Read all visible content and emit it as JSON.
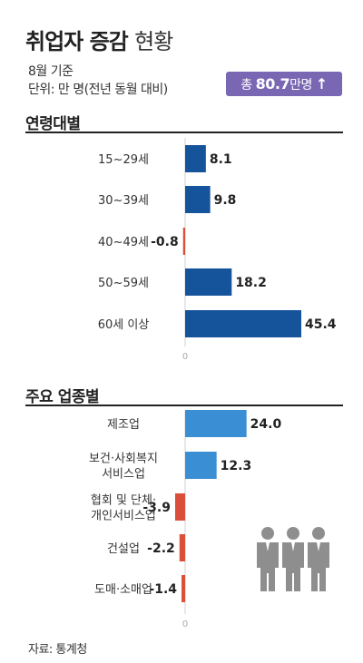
{
  "title": {
    "bold": "취업자 증감",
    "light": "현황"
  },
  "subtitle_lines": [
    "8월 기준",
    "단위: 만 명(전년 동월 대비)"
  ],
  "badge": {
    "prefix": "총",
    "value": "80.7",
    "suffix": "만명",
    "arrow": "↑"
  },
  "source": "자료: 통계청",
  "colors": {
    "age_bar": "#15539a",
    "industry_bar": "#3a8ed3",
    "negative_bar": "#d94f3a",
    "badge": "#7967b3",
    "people_icon": "#8e8e8e"
  },
  "chart_data": [
    {
      "type": "bar",
      "orientation": "horizontal",
      "title": "연령대별",
      "categories": [
        [
          "15~29세"
        ],
        [
          "30~39세"
        ],
        [
          "40~49세"
        ],
        [
          "50~59세"
        ],
        [
          "60세 이상"
        ]
      ],
      "values": [
        8.1,
        9.8,
        -0.8,
        18.2,
        45.4
      ],
      "value_labels": [
        "8.1",
        "9.8",
        "-0.8",
        "18.2",
        "45.4"
      ],
      "zero_label": "0",
      "xlim": [
        -3.9,
        45.4
      ]
    },
    {
      "type": "bar",
      "orientation": "horizontal",
      "title": "주요 업종별",
      "categories": [
        [
          "제조업"
        ],
        [
          "보건·사회복지",
          "서비스업"
        ],
        [
          "협회 및 단체·",
          "개인서비스업"
        ],
        [
          "건설업"
        ],
        [
          "도매·소매업"
        ]
      ],
      "values": [
        24.0,
        12.3,
        -3.9,
        -2.2,
        -1.4
      ],
      "value_labels": [
        "24.0",
        "12.3",
        "-3.9",
        "-2.2",
        "-1.4"
      ],
      "zero_label": "0",
      "xlim": [
        -3.9,
        45.4
      ]
    }
  ]
}
